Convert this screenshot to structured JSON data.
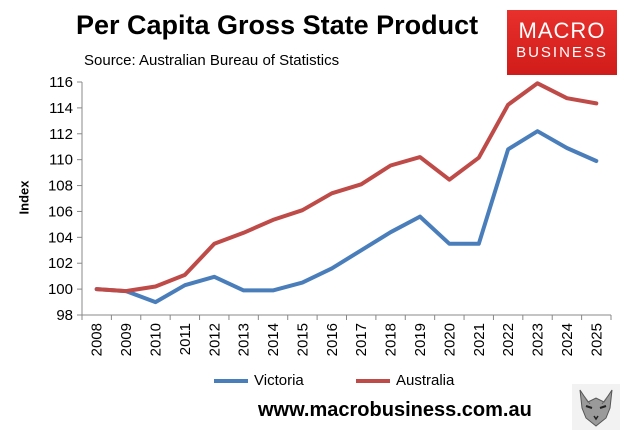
{
  "chart_data": {
    "type": "line",
    "title": "Per Capita Gross State Product",
    "subtitle": "Source: Australian Bureau of Statistics",
    "xlabel": "",
    "ylabel": "Index",
    "ylim": [
      98,
      116
    ],
    "yticks": [
      98,
      100,
      102,
      104,
      106,
      108,
      110,
      112,
      114,
      116
    ],
    "grid": false,
    "legend_position": "bottom",
    "x": [
      "2008",
      "2009",
      "2010",
      "2011",
      "2012",
      "2013",
      "2014",
      "2015",
      "2016",
      "2017",
      "2018",
      "2019",
      "2020",
      "2021",
      "2022",
      "2023",
      "2024",
      "2025"
    ],
    "series": [
      {
        "name": "Victoria",
        "color": "#4a7ebb",
        "values": [
          100.0,
          99.85,
          99.0,
          100.3,
          100.95,
          99.9,
          99.9,
          100.5,
          101.6,
          103.0,
          104.4,
          105.6,
          103.5,
          103.5,
          110.8,
          112.2,
          110.9,
          109.9
        ]
      },
      {
        "name": "Australia",
        "color": "#be4b48",
        "values": [
          100.0,
          99.85,
          100.2,
          101.1,
          103.5,
          104.35,
          105.35,
          106.1,
          107.4,
          108.1,
          109.55,
          110.2,
          108.45,
          110.15,
          114.25,
          115.9,
          114.75,
          114.35
        ]
      }
    ]
  },
  "branding": {
    "logo_line1": "MACRO",
    "logo_line2": "BUSINESS",
    "footer_url": "www.macrobusiness.com.au"
  },
  "colors": {
    "logo_red": "#d8241f",
    "axis": "#888888"
  }
}
